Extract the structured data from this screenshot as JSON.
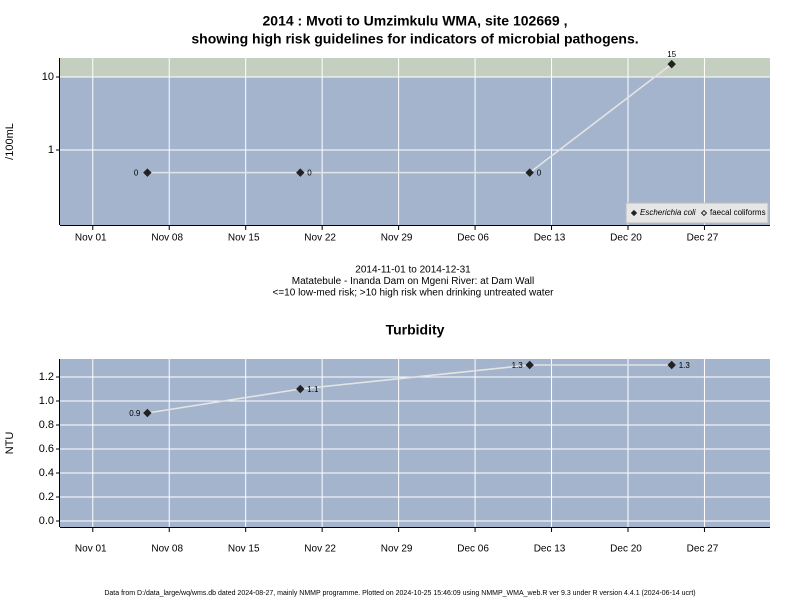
{
  "chart_data": [
    {
      "type": "line",
      "title": [
        "2014 : Mvoti to Umzimkulu WMA, site 102669 ,",
        "showing high risk guidelines for indicators of microbial pathogens."
      ],
      "ylabel": "/100mL",
      "x": [
        "2014-11-06",
        "2014-11-20",
        "2014-12-11",
        "2014-12-24"
      ],
      "series": [
        {
          "name": "Escherichia coli",
          "color": "#222222",
          "line_color": "#e4e4e4",
          "marker": "filled",
          "values": [
            0.49,
            0.49,
            0.49,
            15
          ],
          "value_labels": [
            "0",
            "0",
            "0",
            "15"
          ]
        },
        {
          "name": "faecal coliforms",
          "color": "#222222",
          "line_color": "#e4e4e4",
          "marker": "open",
          "values": [
            null,
            null,
            null,
            null
          ]
        }
      ],
      "log_scale": true,
      "ylim": [
        0.094,
        18.2
      ],
      "yticks": [
        1,
        10
      ],
      "xlim": [
        "2014-10-29",
        "2015-01-02"
      ],
      "xticks": [
        {
          "value": "2014-11-01",
          "label": "Nov 01"
        },
        {
          "value": "2014-11-08",
          "label": "Nov 08"
        },
        {
          "value": "2014-11-15",
          "label": "Nov 15"
        },
        {
          "value": "2014-11-22",
          "label": "Nov 22"
        },
        {
          "value": "2014-11-29",
          "label": "Nov 29"
        },
        {
          "value": "2014-12-06",
          "label": "Dec 06"
        },
        {
          "value": "2014-12-13",
          "label": "Dec 13"
        },
        {
          "value": "2014-12-20",
          "label": "Dec 20"
        },
        {
          "value": "2014-12-27",
          "label": "Dec 27"
        }
      ],
      "high_risk_threshold": 10,
      "high_risk_color": "#c5cfc0",
      "background": "#a3b4cc",
      "grid": true,
      "legend": "bottom right",
      "subtitle": [
        "2014-11-01 to 2014-12-31",
        "Matatebule - Inanda Dam on Mgeni River: at Dam Wall",
        "<=10 low-med risk; >10 high risk when drinking untreated water"
      ]
    },
    {
      "type": "line",
      "title": [
        "Turbidity"
      ],
      "ylabel": "NTU",
      "x": [
        "2014-11-06",
        "2014-11-20",
        "2014-12-11",
        "2014-12-24"
      ],
      "series": [
        {
          "name": "Turbidity",
          "color": "#222222",
          "line_color": "#e4e4e4",
          "marker": "filled",
          "values": [
            0.9,
            1.1,
            1.3,
            1.3
          ]
        }
      ],
      "log_scale": false,
      "ylim": [
        -0.05,
        1.35
      ],
      "yticks": [
        {
          "value": 0,
          "label": "0.0"
        },
        0.2,
        0.4,
        0.6,
        0.8,
        {
          "value": 1,
          "label": "1.0"
        },
        1.2
      ],
      "xlim": [
        "2014-10-29",
        "2015-01-02"
      ],
      "xticks": [
        {
          "value": "2014-11-01",
          "label": "Nov 01"
        },
        {
          "value": "2014-11-08",
          "label": "Nov 08"
        },
        {
          "value": "2014-11-15",
          "label": "Nov 15"
        },
        {
          "value": "2014-11-22",
          "label": "Nov 22"
        },
        {
          "value": "2014-11-29",
          "label": "Nov 29"
        },
        {
          "value": "2014-12-06",
          "label": "Dec 06"
        },
        {
          "value": "2014-12-13",
          "label": "Dec 13"
        },
        {
          "value": "2014-12-20",
          "label": "Dec 20"
        },
        {
          "value": "2014-12-27",
          "label": "Dec 27"
        }
      ],
      "background": "#a3b4cc",
      "grid": true
    }
  ],
  "footer": "Data from D:/data_large/wq/wms.db dated 2024-08-27, mainly NMMP programme. Plotted on 2024-10-25 15:46:09 using NMMP_WMA_web.R ver 9.3 under R version 4.4.1 (2024-06-14 ucrt)"
}
